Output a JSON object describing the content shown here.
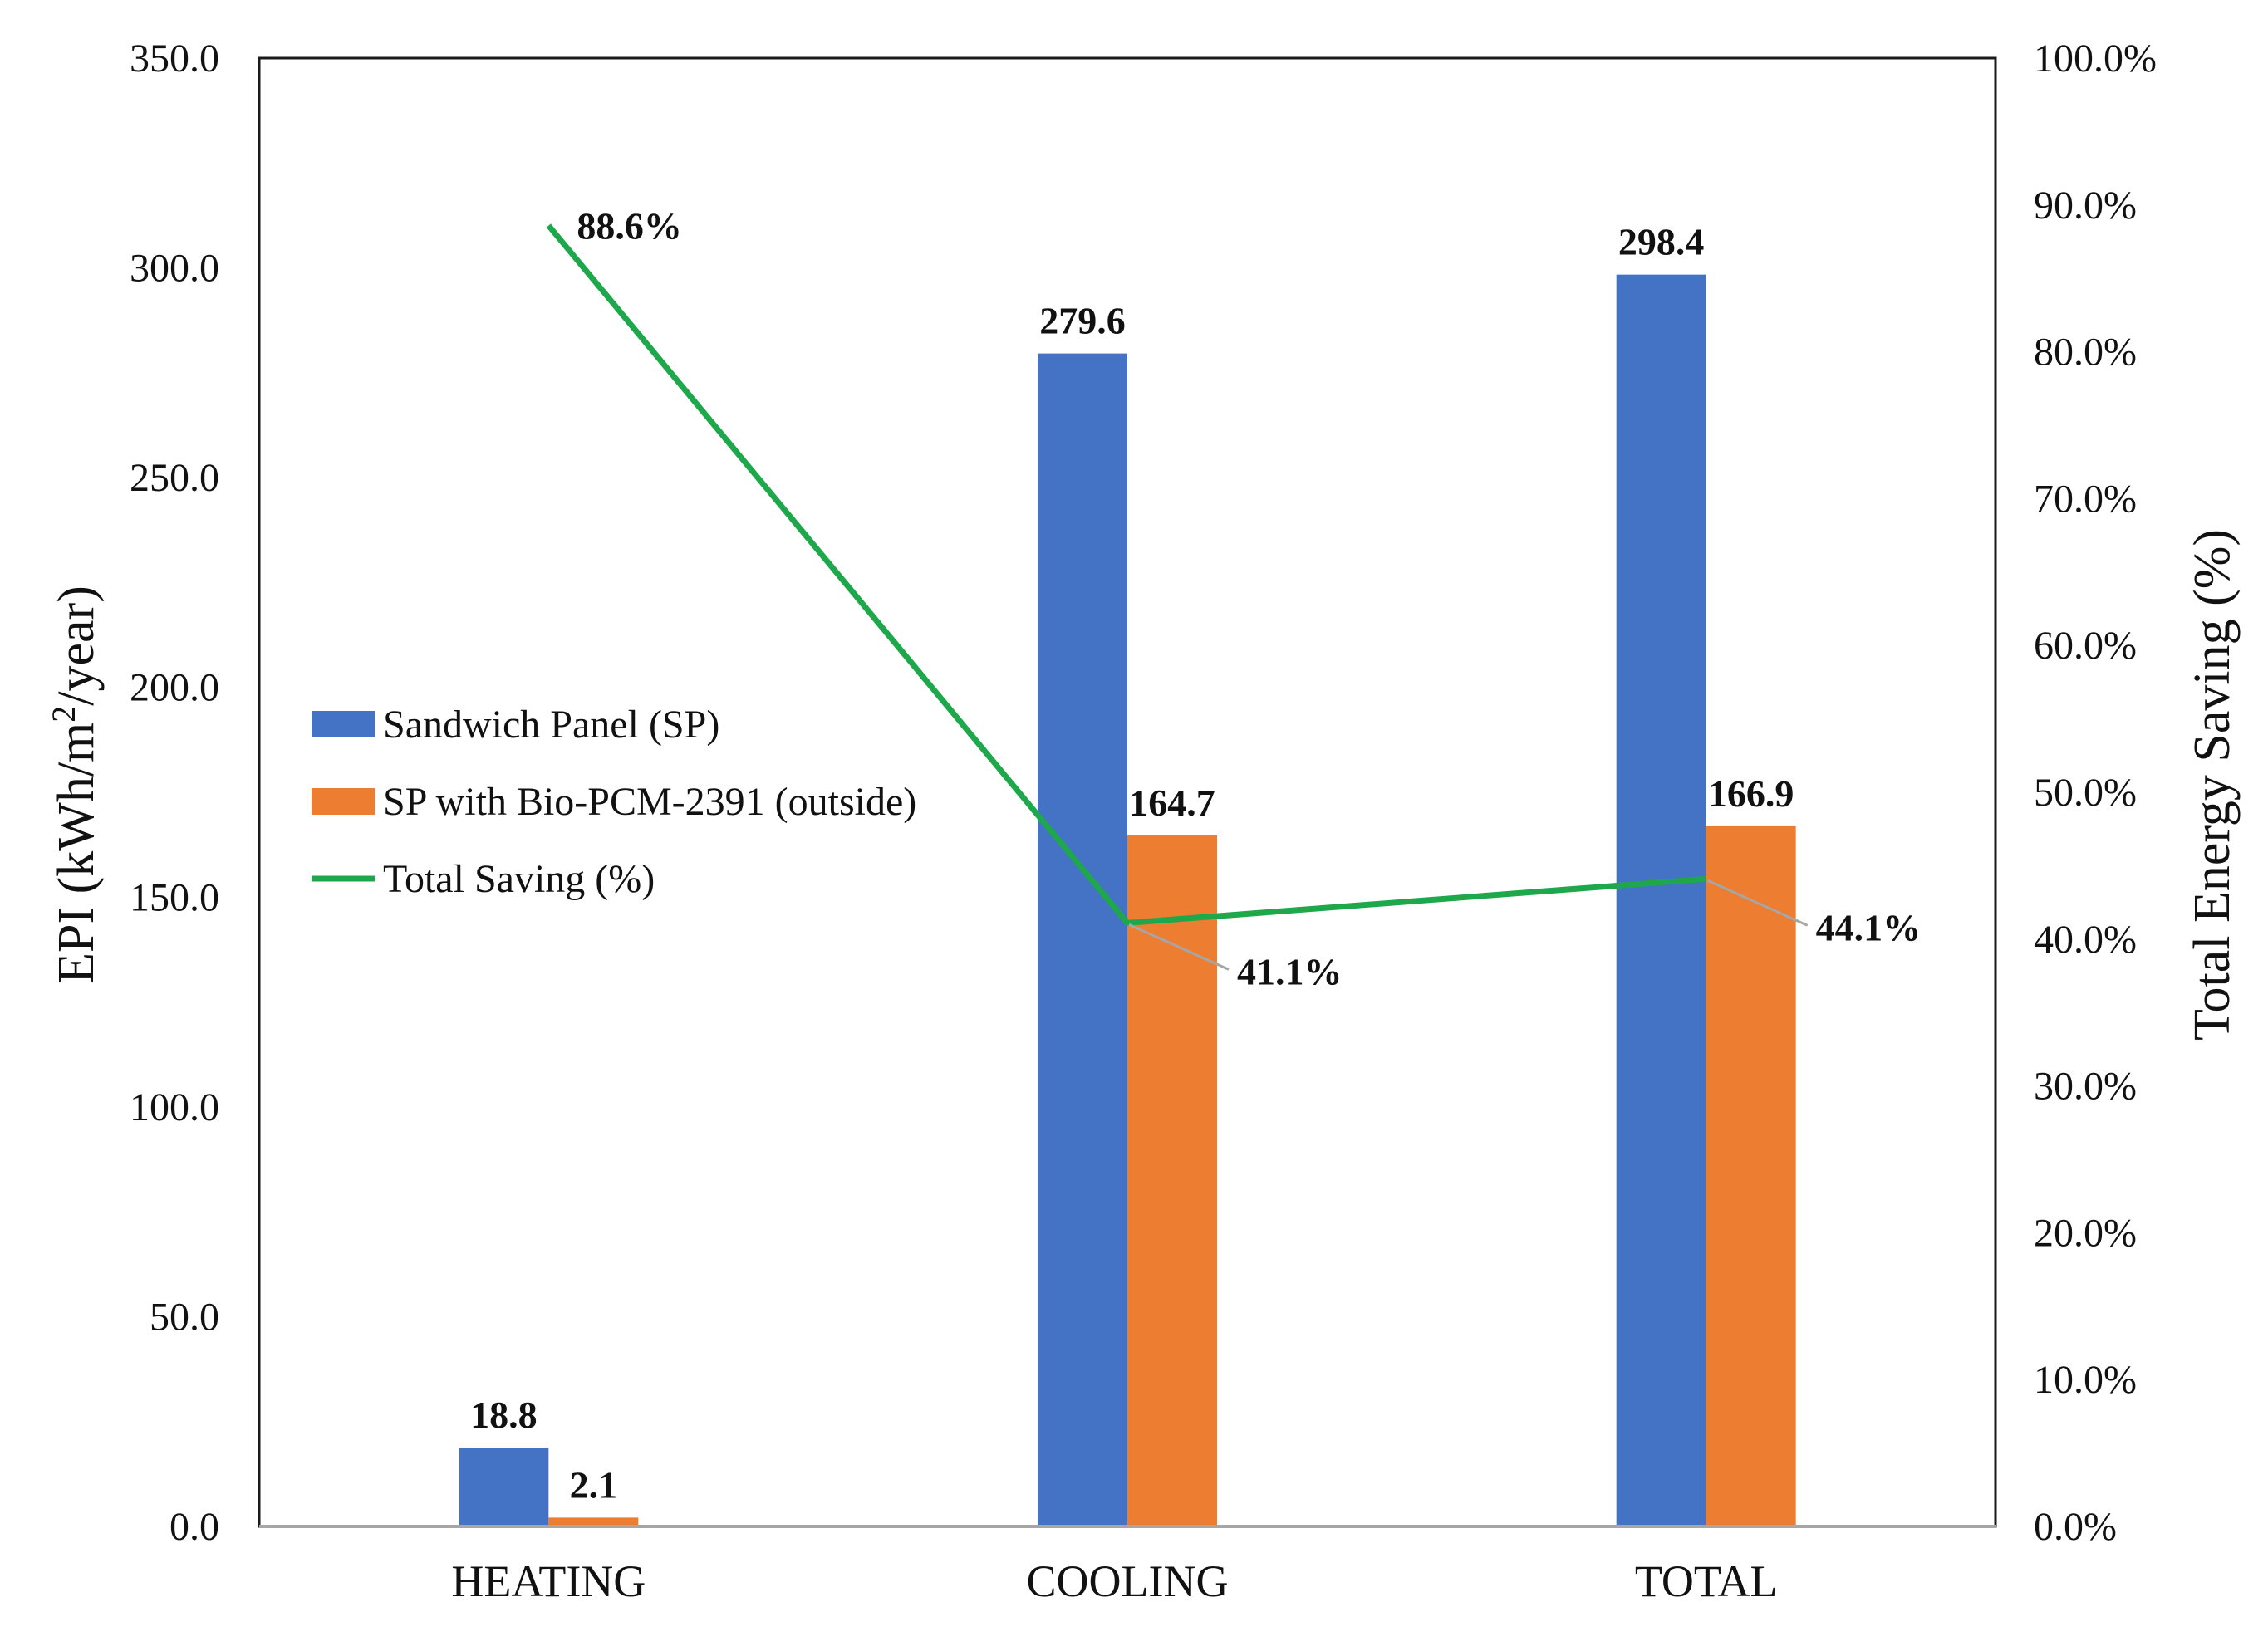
{
  "chart_data": {
    "type": "bar",
    "categories": [
      "HEATING",
      "COOLING",
      "TOTAL"
    ],
    "series": [
      {
        "name": "Sandwich Panel (SP)",
        "kind": "bar",
        "axis": "left",
        "color": "#4472C4",
        "values": [
          18.8,
          279.6,
          298.4
        ],
        "labels": [
          "18.8",
          "279.6",
          "298.4"
        ]
      },
      {
        "name": "SP with Bio-PCM-2391 (outside)",
        "kind": "bar",
        "axis": "left",
        "color": "#ED7D31",
        "values": [
          2.1,
          164.7,
          166.9
        ],
        "labels": [
          "2.1",
          "164.7",
          "166.9"
        ]
      },
      {
        "name": "Total Saving (%)",
        "kind": "line",
        "axis": "right",
        "color": "#1EA84B",
        "values": [
          88.6,
          41.1,
          44.1
        ],
        "labels": [
          "88.6%",
          "41.1%",
          "44.1%"
        ]
      }
    ],
    "y_left": {
      "label": "EPI (kWh/m²/year)",
      "label_main": "EPI (kWh/m",
      "label_sup": "2",
      "label_tail": "/year)",
      "ylim": [
        0,
        350
      ],
      "ticks": [
        "0.0",
        "50.0",
        "100.0",
        "150.0",
        "200.0",
        "250.0",
        "300.0",
        "350.0"
      ]
    },
    "y_right": {
      "label": "Total Energy Saving (%)",
      "ylim": [
        0,
        100
      ],
      "ticks": [
        "0.0%",
        "10.0%",
        "20.0%",
        "30.0%",
        "40.0%",
        "50.0%",
        "60.0%",
        "70.0%",
        "80.0%",
        "90.0%",
        "100.0%"
      ]
    },
    "grid": false,
    "legend_position": "center-left"
  }
}
